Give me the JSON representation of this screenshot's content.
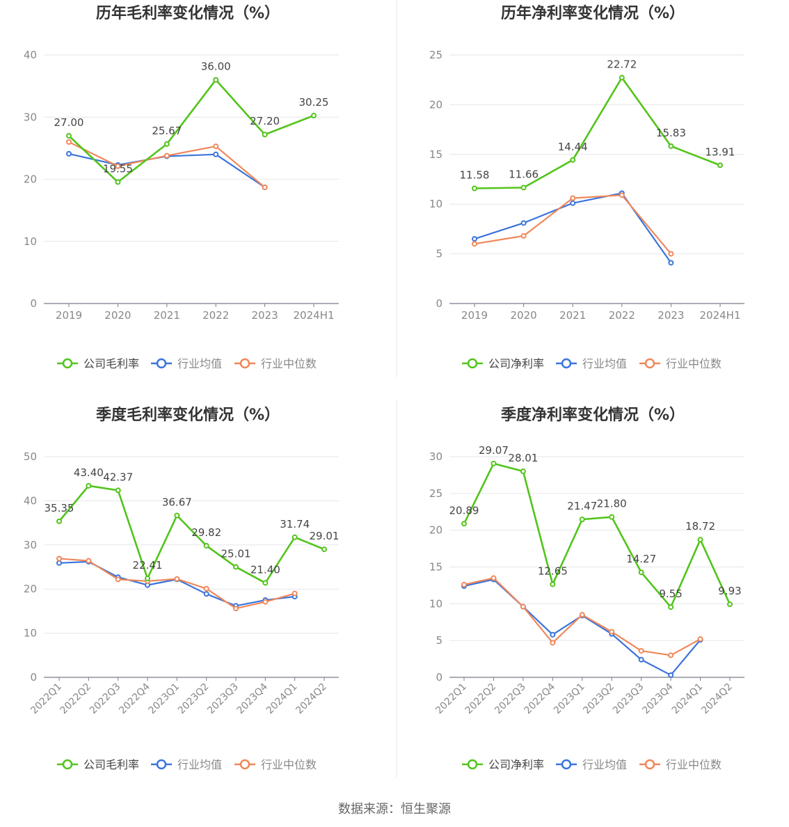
{
  "source": "数据来源：恒生聚源",
  "legend_colors": {
    "company": "#52c41a",
    "average": "#3b74db",
    "median": "#f0875a"
  },
  "chart_data": [
    {
      "type": "line",
      "title": "历年毛利率变化情况（%）",
      "categories": [
        "2019",
        "2020",
        "2021",
        "2022",
        "2023",
        "2024H1"
      ],
      "ylim": [
        0,
        40
      ],
      "yticks": [
        0,
        10,
        20,
        30,
        40
      ],
      "series": [
        {
          "name": "公司毛利率",
          "role": "company",
          "values": [
            27.0,
            19.55,
            25.67,
            36.0,
            27.2,
            30.25
          ],
          "labels": [
            "27.00",
            "19.55",
            "25.67",
            "36.00",
            "27.20",
            "30.25"
          ]
        },
        {
          "name": "行业均值",
          "role": "average",
          "values": [
            24.1,
            22.3,
            23.7,
            24.0,
            18.7,
            null
          ]
        },
        {
          "name": "行业中位数",
          "role": "median",
          "values": [
            26.0,
            22.1,
            23.8,
            25.3,
            18.7,
            null
          ]
        }
      ]
    },
    {
      "type": "line",
      "title": "历年净利率变化情况（%）",
      "categories": [
        "2019",
        "2020",
        "2021",
        "2022",
        "2023",
        "2024H1"
      ],
      "ylim": [
        0,
        25
      ],
      "yticks": [
        0,
        5,
        10,
        15,
        20,
        25
      ],
      "series": [
        {
          "name": "公司净利率",
          "role": "company",
          "values": [
            11.58,
            11.66,
            14.44,
            22.72,
            15.83,
            13.91
          ],
          "labels": [
            "11.58",
            "11.66",
            "14.44",
            "22.72",
            "15.83",
            "13.91"
          ]
        },
        {
          "name": "行业均值",
          "role": "average",
          "values": [
            6.5,
            8.1,
            10.1,
            11.1,
            4.1,
            null
          ]
        },
        {
          "name": "行业中位数",
          "role": "median",
          "values": [
            6.0,
            6.8,
            10.6,
            10.9,
            5.0,
            null
          ]
        }
      ]
    },
    {
      "type": "line",
      "title": "季度毛利率变化情况（%）",
      "categories": [
        "2022Q1",
        "2022Q2",
        "2022Q3",
        "2022Q4",
        "2023Q1",
        "2023Q2",
        "2023Q3",
        "2023Q4",
        "2024Q1",
        "2024Q2"
      ],
      "ylim": [
        0,
        50
      ],
      "yticks": [
        0,
        10,
        20,
        30,
        40,
        50
      ],
      "rotate_x": true,
      "series": [
        {
          "name": "公司毛利率",
          "role": "company",
          "values": [
            35.35,
            43.4,
            42.37,
            22.41,
            36.67,
            29.82,
            25.01,
            21.4,
            31.74,
            29.01
          ],
          "labels": [
            "35.35",
            "43.40",
            "42.37",
            "22.41",
            "36.67",
            "29.82",
            "25.01",
            "21.40",
            "31.74",
            "29.01"
          ]
        },
        {
          "name": "行业均值",
          "role": "average",
          "values": [
            25.9,
            26.2,
            22.7,
            20.9,
            22.2,
            18.9,
            16.2,
            17.5,
            18.3,
            null
          ]
        },
        {
          "name": "行业中位数",
          "role": "median",
          "values": [
            26.9,
            26.4,
            22.2,
            21.8,
            22.3,
            20.1,
            15.6,
            17.1,
            19.0,
            null
          ]
        }
      ]
    },
    {
      "type": "line",
      "title": "季度净利率变化情况（%）",
      "categories": [
        "2022Q1",
        "2022Q2",
        "2022Q3",
        "2022Q4",
        "2023Q1",
        "2023Q2",
        "2023Q3",
        "2023Q4",
        "2024Q1",
        "2024Q2"
      ],
      "ylim": [
        0,
        30
      ],
      "yticks": [
        0,
        5,
        10,
        15,
        20,
        25,
        30
      ],
      "rotate_x": true,
      "series": [
        {
          "name": "公司净利率",
          "role": "company",
          "values": [
            20.89,
            29.07,
            28.01,
            12.65,
            21.47,
            21.8,
            14.27,
            9.55,
            18.72,
            9.93
          ],
          "labels": [
            "20.89",
            "29.07",
            "28.01",
            "12.65",
            "21.47",
            "21.80",
            "14.27",
            "9.55",
            "18.72",
            "9.93"
          ]
        },
        {
          "name": "行业均值",
          "role": "average",
          "values": [
            12.4,
            13.3,
            9.6,
            5.8,
            8.4,
            5.9,
            2.4,
            0.3,
            5.1,
            null
          ]
        },
        {
          "name": "行业中位数",
          "role": "median",
          "values": [
            12.6,
            13.5,
            9.6,
            4.7,
            8.5,
            6.2,
            3.6,
            3.0,
            5.2,
            null
          ]
        }
      ]
    }
  ]
}
